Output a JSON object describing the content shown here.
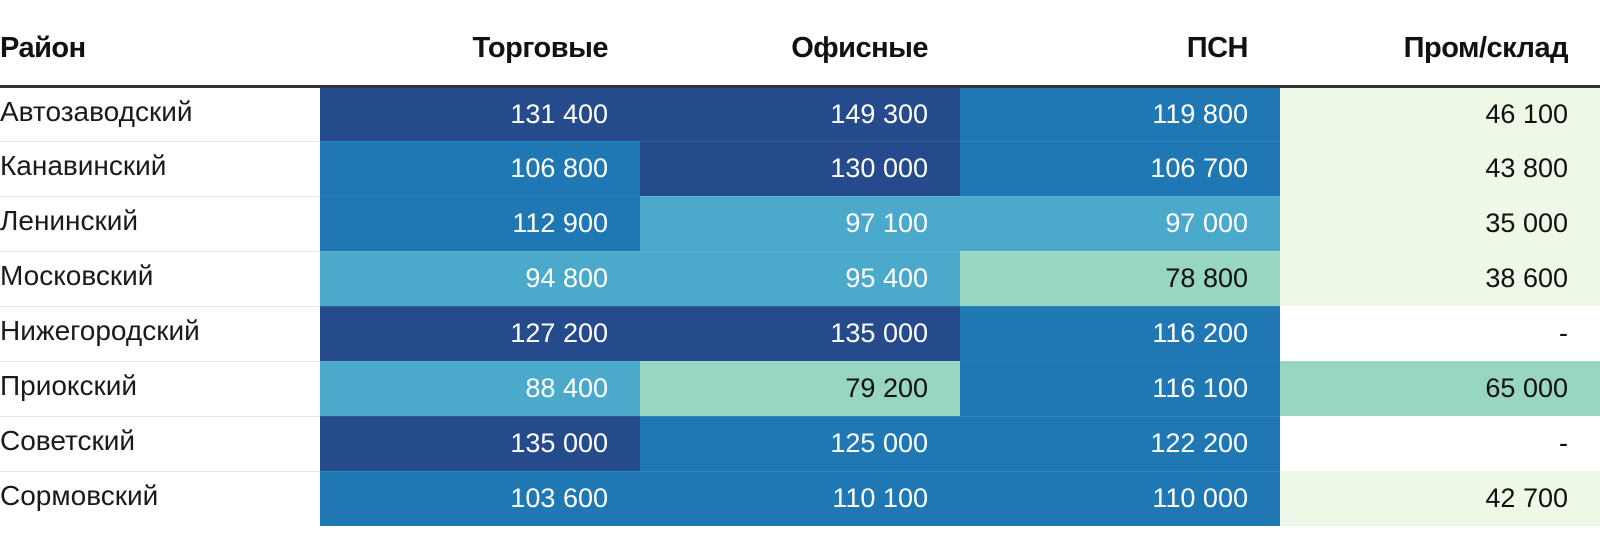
{
  "chart_data": {
    "type": "heatmap",
    "columns": [
      "Район",
      "Торговые",
      "Офисные",
      "ПСН",
      "Пром/склад"
    ],
    "rows": [
      {
        "name": "Автозаводский",
        "values": [
          "131 400",
          "149 300",
          "119 800",
          "46 100"
        ],
        "levels": [
          4,
          4,
          3,
          1
        ]
      },
      {
        "name": "Канавинский",
        "values": [
          "106 800",
          "130 000",
          "106 700",
          "43 800"
        ],
        "levels": [
          3,
          4,
          3,
          1
        ]
      },
      {
        "name": "Ленинский",
        "values": [
          "112 900",
          "97 100",
          "97 000",
          "35 000"
        ],
        "levels": [
          3,
          2,
          2,
          1
        ]
      },
      {
        "name": "Московский",
        "values": [
          "94 800",
          "95 400",
          "78 800",
          "38 600"
        ],
        "levels": [
          2,
          2,
          6,
          1
        ]
      },
      {
        "name": "Нижегородский",
        "values": [
          "127 200",
          "135 000",
          "116 200",
          "-"
        ],
        "levels": [
          4,
          4,
          3,
          0
        ]
      },
      {
        "name": "Приокский",
        "values": [
          "88 400",
          "79 200",
          "116 100",
          "65 000"
        ],
        "levels": [
          2,
          6,
          3,
          6
        ]
      },
      {
        "name": "Советский",
        "values": [
          "135 000",
          "125 000",
          "122 200",
          "-"
        ],
        "levels": [
          4,
          3,
          3,
          0
        ]
      },
      {
        "name": "Сормовский",
        "values": [
          "103 600",
          "110 100",
          "110 000",
          "42 700"
        ],
        "levels": [
          3,
          3,
          3,
          1
        ]
      }
    ],
    "level_colors": {
      "0": "#ffffff",
      "1": "#eef8e6",
      "2": "#4ba9cb",
      "3": "#1f78b4",
      "4": "#254b8c",
      "6": "#99d6c0"
    },
    "light_text_levels": [
      2,
      3,
      4
    ],
    "light_text_color": "#ffffff",
    "dark_text_color": "#111111"
  }
}
